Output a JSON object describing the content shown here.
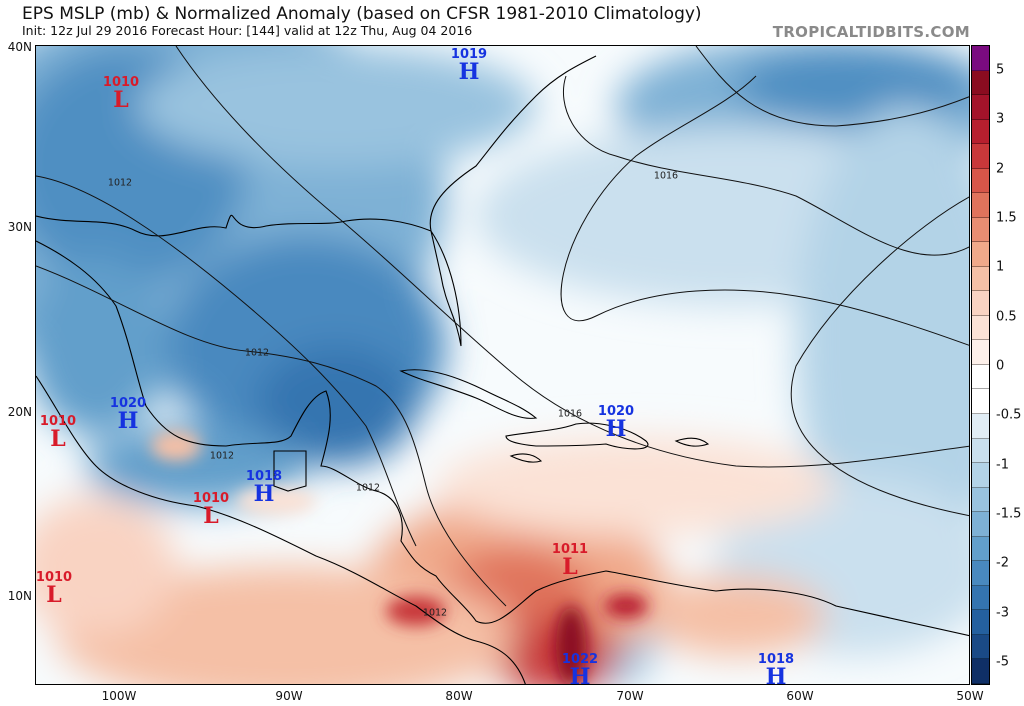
{
  "header": {
    "title": "EPS MSLP (mb) & Normalized Anomaly (based on CFSR 1981-2010 Climatology)",
    "subtitle": "Init: 12z Jul 29 2016   Forecast Hour: [144]   valid at 12z Thu, Aug 04 2016",
    "brand": "TROPICALTIDBITS.COM"
  },
  "axes": {
    "lat_labels": [
      "40N",
      "30N",
      "20N",
      "10N"
    ],
    "lon_labels": [
      "100W",
      "90W",
      "80W",
      "70W",
      "60W",
      "50W"
    ]
  },
  "colorbar": {
    "labels": [
      "5",
      "3",
      "2",
      "1.5",
      "1",
      "0.5",
      "0",
      "-0.5",
      "-1",
      "-1.5",
      "-2",
      "-3",
      "-5"
    ],
    "colors": [
      "#7a0b80",
      "#8a0c20",
      "#a3132a",
      "#b71f2e",
      "#c8383a",
      "#d75649",
      "#e0735c",
      "#e98d72",
      "#f0a98a",
      "#f5c0a6",
      "#f9d3c2",
      "#fbe2d6",
      "#fdf0ea",
      "#ffffff",
      "#ffffff",
      "#e1edf5",
      "#cae0ee",
      "#b3d3e7",
      "#99c3df",
      "#7eb1d5",
      "#629fcb",
      "#4989bf",
      "#3474b0",
      "#24609f",
      "#1a4a86",
      "#0f2f66"
    ]
  },
  "systems": [
    {
      "type": "L",
      "value": "1010"
    },
    {
      "type": "H",
      "value": "1019"
    },
    {
      "type": "H",
      "value": "1020"
    },
    {
      "type": "L",
      "value": "1010"
    },
    {
      "type": "H",
      "value": "1018"
    },
    {
      "type": "L",
      "value": "1010"
    },
    {
      "type": "H",
      "value": "1020"
    },
    {
      "type": "L",
      "value": "1010"
    },
    {
      "type": "L",
      "value": "1011"
    },
    {
      "type": "H",
      "value": "1022"
    },
    {
      "type": "H",
      "value": "1018"
    }
  ],
  "isobar_labels": [
    "1016",
    "1012",
    "1012",
    "1012",
    "1012",
    "1012",
    "1016"
  ]
}
